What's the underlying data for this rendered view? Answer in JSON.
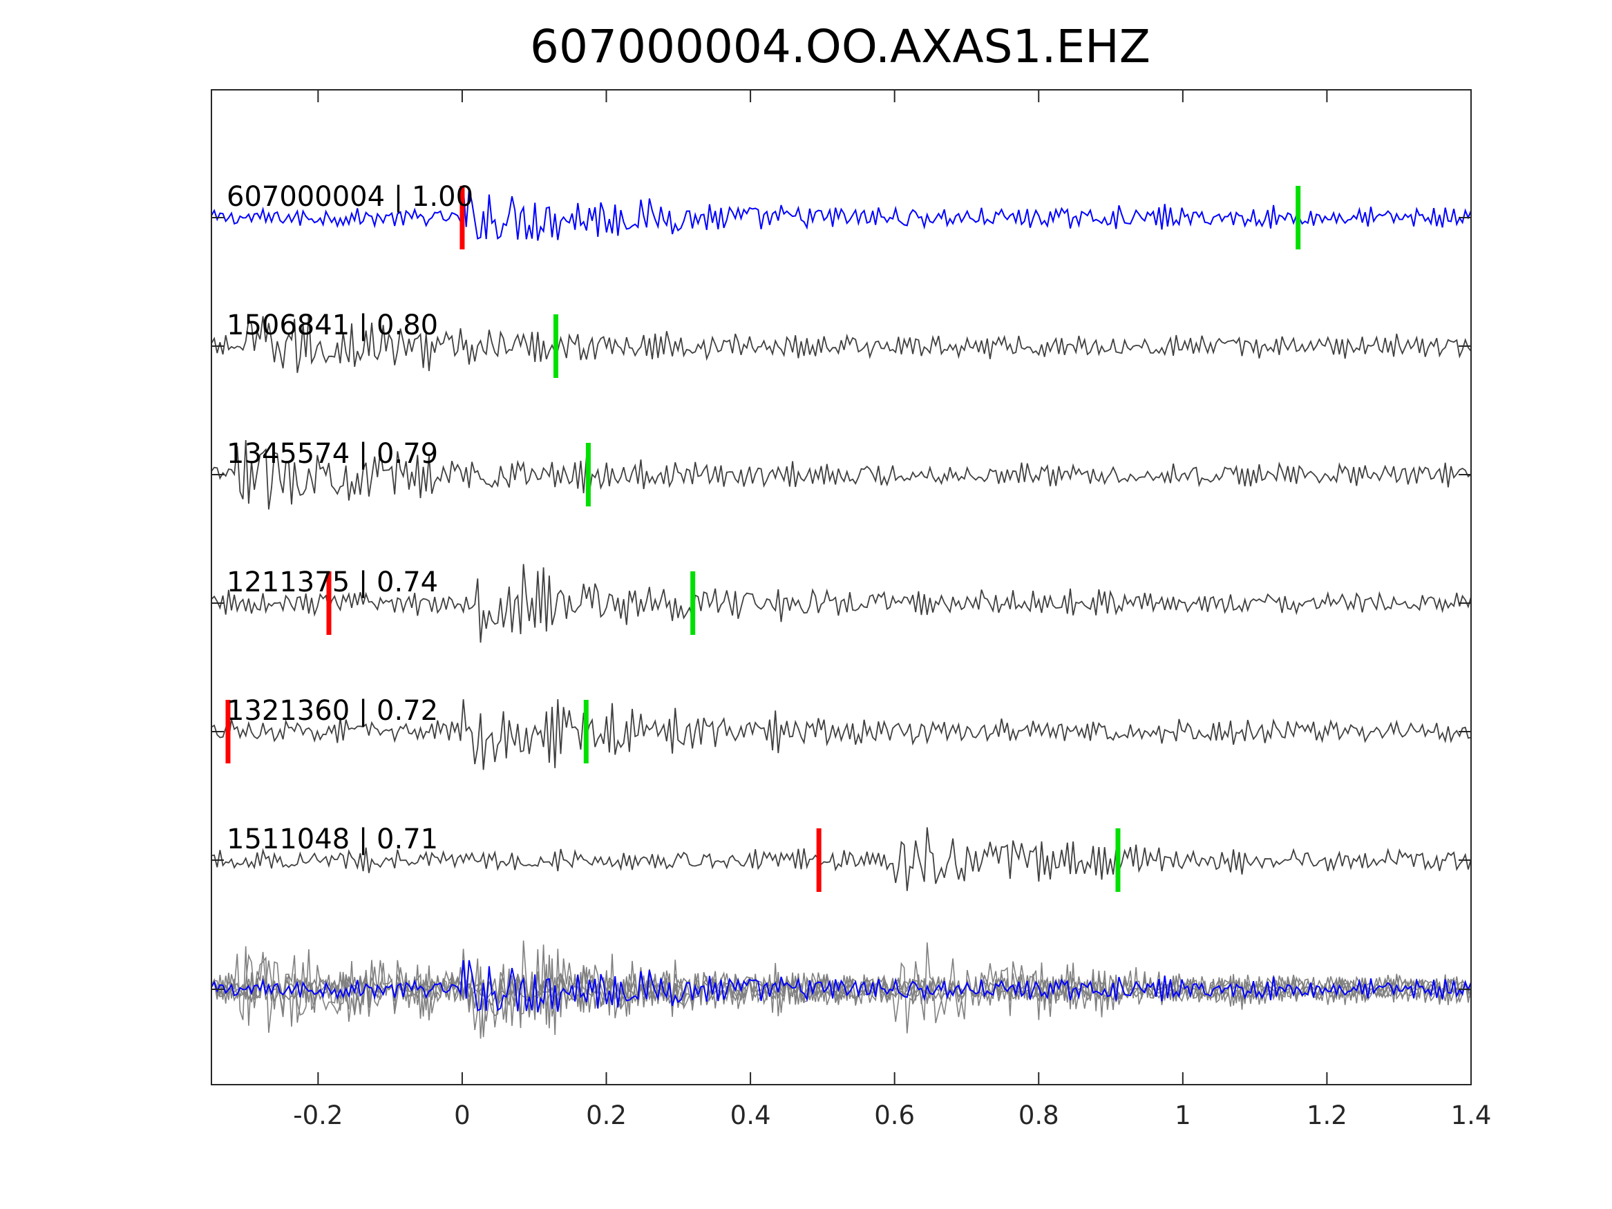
{
  "chart_data": {
    "type": "line",
    "title": "607000004.OO.AXAS1.EHZ",
    "xlabel": "",
    "ylabel": "",
    "xlim": [
      -0.348,
      1.4
    ],
    "xticks": [
      -0.2,
      0,
      0.2,
      0.4,
      0.6,
      0.8,
      1,
      1.2,
      1.4
    ],
    "xtick_labels": [
      "-0.2",
      "0",
      "0.2",
      "0.4",
      "0.6",
      "0.8",
      "1",
      "1.2",
      "1.4"
    ],
    "grid": false,
    "colors": {
      "reference": "#0000ff",
      "trace": "#404040",
      "stack": "#808080",
      "p_pick": "#ff0000",
      "s_pick": "#00e000"
    },
    "traces": [
      {
        "id": "607000004",
        "corr": "1.00",
        "label": "607000004 | 1.00",
        "reference": true,
        "p_pick": 0.0,
        "s_pick": 1.16
      },
      {
        "id": "1506841",
        "corr": "0.80",
        "label": "1506841 | 0.80",
        "p_pick": null,
        "s_pick": 0.13
      },
      {
        "id": "1345574",
        "corr": "0.79",
        "label": "1345574 | 0.79",
        "p_pick": null,
        "s_pick": 0.175
      },
      {
        "id": "1211375",
        "corr": "0.74",
        "label": "1211375 | 0.74",
        "p_pick": -0.185,
        "s_pick": 0.32
      },
      {
        "id": "1321360",
        "corr": "0.72",
        "label": "1321360 | 0.72",
        "p_pick": -0.325,
        "s_pick": 0.172
      },
      {
        "id": "1511048",
        "corr": "0.71",
        "label": "1511048 | 0.71",
        "p_pick": 0.495,
        "s_pick": 0.91
      }
    ]
  }
}
